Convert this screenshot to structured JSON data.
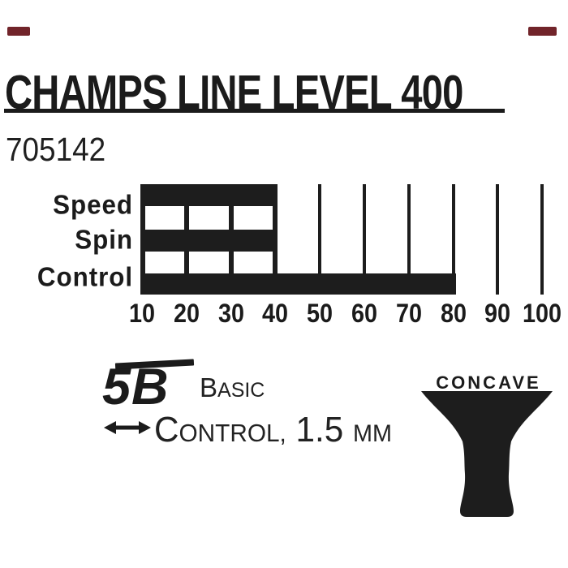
{
  "header": {
    "title": "CHAMPS LINE LEVEL 400",
    "product_number": "705142"
  },
  "chart_data": {
    "type": "bar",
    "orientation": "horizontal",
    "categories": [
      "Speed",
      "Spin",
      "Control"
    ],
    "values": [
      40,
      40,
      80
    ],
    "x_ticks": [
      10,
      20,
      30,
      40,
      50,
      60,
      70,
      80,
      90,
      100
    ],
    "xlim": [
      10,
      100
    ],
    "axis_start": 10,
    "segment_step": 10,
    "bar_color": "#1d1d1d",
    "grid": false,
    "legend": false,
    "title": ""
  },
  "specs": {
    "code": "5B",
    "level_initial": "B",
    "level_rest": "ASIC",
    "rubber_initial": "C",
    "rubber_rest": "ONTROL,",
    "rubber_value": " 1.5 ",
    "rubber_unit": "MM",
    "arrow_icon": "left-right-arrow"
  },
  "handle": {
    "label": "CONCAVE",
    "icon": "concave-handle-silhouette"
  },
  "decor": {
    "corner_mark_color": "#71242a"
  }
}
